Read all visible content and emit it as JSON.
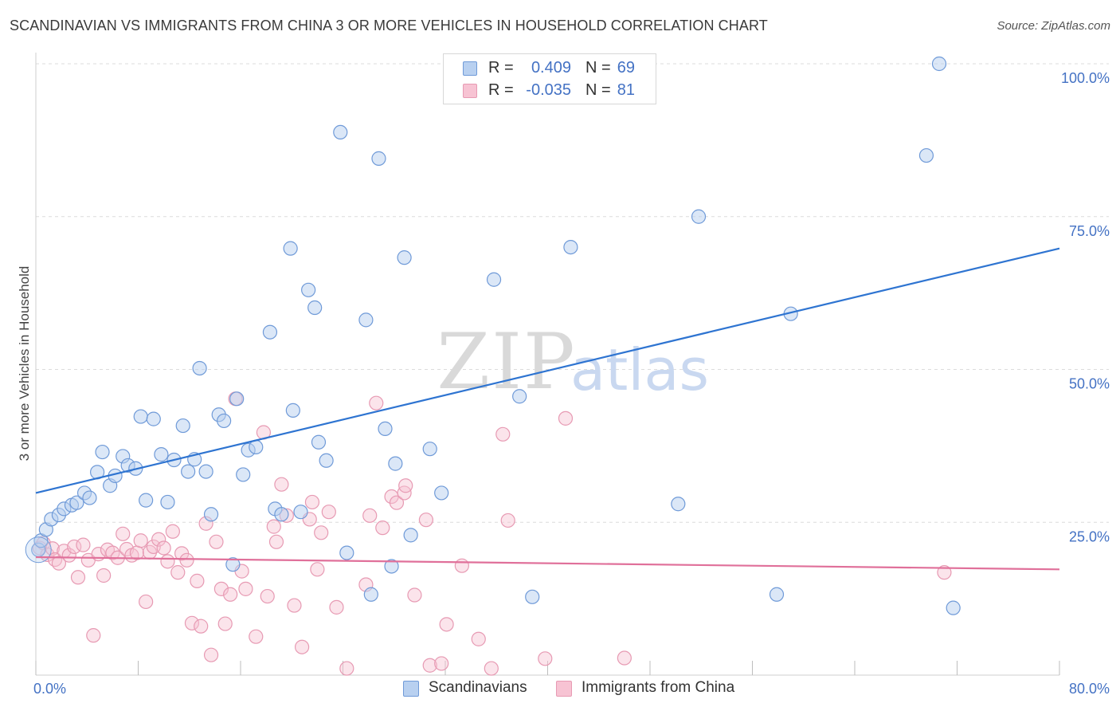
{
  "title": "SCANDINAVIAN VS IMMIGRANTS FROM CHINA 3 OR MORE VEHICLES IN HOUSEHOLD CORRELATION CHART",
  "source": "Source: ZipAtlas.com",
  "watermark": {
    "zip": "ZIP",
    "atlas": "atlas"
  },
  "legend": {
    "rows": [
      {
        "r_label": "R =",
        "r_value": "0.409",
        "n_label": "N =",
        "n_value": "69"
      },
      {
        "r_label": "R =",
        "r_value": "-0.035",
        "n_label": "N =",
        "n_value": "81"
      }
    ]
  },
  "colors": {
    "blue_fill": "#b8d0f0",
    "blue_stroke": "#6f9ad8",
    "blue_line": "#2e74d1",
    "pink_fill": "#f7c3d3",
    "pink_stroke": "#e79ab3",
    "pink_line": "#e0709a",
    "tick_text": "#4472c4",
    "grid": "#dcdcdc"
  },
  "chart_data": {
    "type": "scatter",
    "title": "SCANDINAVIAN VS IMMIGRANTS FROM CHINA 3 OR MORE VEHICLES IN HOUSEHOLD CORRELATION CHART",
    "xlabel": "",
    "ylabel": "3 or more Vehicles in Household",
    "xlim": [
      0,
      80
    ],
    "ylim": [
      0,
      100
    ],
    "x_tick_labels": [
      "0.0%",
      "80.0%"
    ],
    "y_ticks": [
      25,
      50,
      75,
      100
    ],
    "y_tick_labels": [
      "25.0%",
      "50.0%",
      "75.0%",
      "100.0%"
    ],
    "grid": true,
    "legend_position": "top-center",
    "series": [
      {
        "name": "Scandinavians",
        "r": 0.409,
        "n": 69,
        "trend": {
          "x0": 0,
          "y0": 29.8,
          "x1": 80,
          "y1": 69.8
        },
        "points": [
          [
            0.2,
            20.5
          ],
          [
            0.4,
            22.0
          ],
          [
            0.8,
            23.8
          ],
          [
            1.2,
            25.5
          ],
          [
            1.8,
            26.2
          ],
          [
            2.2,
            27.2
          ],
          [
            2.8,
            27.8
          ],
          [
            3.2,
            28.2
          ],
          [
            3.8,
            29.8
          ],
          [
            4.2,
            29.0
          ],
          [
            4.8,
            33.2
          ],
          [
            5.2,
            36.5
          ],
          [
            5.8,
            31.0
          ],
          [
            6.2,
            32.6
          ],
          [
            6.8,
            35.8
          ],
          [
            7.2,
            34.3
          ],
          [
            7.8,
            33.8
          ],
          [
            8.2,
            42.3
          ],
          [
            8.6,
            28.6
          ],
          [
            9.2,
            41.9
          ],
          [
            9.8,
            36.1
          ],
          [
            10.3,
            28.3
          ],
          [
            10.8,
            35.2
          ],
          [
            11.5,
            40.8
          ],
          [
            11.9,
            33.3
          ],
          [
            12.4,
            35.3
          ],
          [
            12.8,
            50.2
          ],
          [
            13.3,
            33.3
          ],
          [
            13.7,
            26.3
          ],
          [
            14.3,
            42.6
          ],
          [
            14.7,
            41.6
          ],
          [
            15.4,
            18.1
          ],
          [
            15.7,
            45.2
          ],
          [
            16.2,
            32.8
          ],
          [
            16.6,
            36.8
          ],
          [
            17.2,
            37.3
          ],
          [
            18.3,
            56.1
          ],
          [
            18.7,
            27.2
          ],
          [
            19.2,
            26.3
          ],
          [
            19.9,
            69.8
          ],
          [
            20.1,
            43.3
          ],
          [
            20.7,
            26.7
          ],
          [
            21.3,
            63.0
          ],
          [
            21.8,
            60.1
          ],
          [
            22.1,
            38.1
          ],
          [
            22.7,
            35.1
          ],
          [
            23.8,
            88.8
          ],
          [
            24.3,
            20.0
          ],
          [
            25.8,
            58.1
          ],
          [
            26.2,
            13.2
          ],
          [
            26.8,
            84.5
          ],
          [
            27.3,
            40.3
          ],
          [
            27.8,
            17.8
          ],
          [
            28.1,
            34.6
          ],
          [
            28.8,
            68.3
          ],
          [
            29.3,
            22.9
          ],
          [
            30.8,
            37.0
          ],
          [
            31.7,
            29.8
          ],
          [
            35.8,
            64.7
          ],
          [
            37.8,
            45.6
          ],
          [
            38.8,
            12.8
          ],
          [
            41.8,
            70.0
          ],
          [
            50.2,
            28.0
          ],
          [
            51.8,
            75.0
          ],
          [
            57.9,
            13.2
          ],
          [
            59.0,
            59.1
          ],
          [
            69.6,
            85.0
          ],
          [
            70.6,
            100.0
          ],
          [
            71.7,
            11.0
          ]
        ]
      },
      {
        "name": "Immigrants from China",
        "r": -0.035,
        "n": 81,
        "trend": {
          "x0": 0,
          "y0": 19.3,
          "x1": 80,
          "y1": 17.3
        },
        "points": [
          [
            0.3,
            20.8
          ],
          [
            0.6,
            21.6
          ],
          [
            0.9,
            19.7
          ],
          [
            1.3,
            20.7
          ],
          [
            1.5,
            18.9
          ],
          [
            1.8,
            18.3
          ],
          [
            2.2,
            20.3
          ],
          [
            2.6,
            19.6
          ],
          [
            3.0,
            21.0
          ],
          [
            3.3,
            16.0
          ],
          [
            3.7,
            21.3
          ],
          [
            4.1,
            18.8
          ],
          [
            4.5,
            6.5
          ],
          [
            4.9,
            19.8
          ],
          [
            5.3,
            16.3
          ],
          [
            5.6,
            20.5
          ],
          [
            6.0,
            20.0
          ],
          [
            6.4,
            19.2
          ],
          [
            6.8,
            23.1
          ],
          [
            7.1,
            20.6
          ],
          [
            7.5,
            19.6
          ],
          [
            7.9,
            20.0
          ],
          [
            8.2,
            22.0
          ],
          [
            8.6,
            12.0
          ],
          [
            8.9,
            20.1
          ],
          [
            9.2,
            21.0
          ],
          [
            9.6,
            22.2
          ],
          [
            10.0,
            20.8
          ],
          [
            10.3,
            18.6
          ],
          [
            10.7,
            23.5
          ],
          [
            11.1,
            16.8
          ],
          [
            11.4,
            19.9
          ],
          [
            11.8,
            18.8
          ],
          [
            12.2,
            8.5
          ],
          [
            12.6,
            15.4
          ],
          [
            12.9,
            8.0
          ],
          [
            13.3,
            24.8
          ],
          [
            13.7,
            3.3
          ],
          [
            14.1,
            21.8
          ],
          [
            14.5,
            14.1
          ],
          [
            14.8,
            8.4
          ],
          [
            15.2,
            13.2
          ],
          [
            15.6,
            45.2
          ],
          [
            16.1,
            17.0
          ],
          [
            16.4,
            14.1
          ],
          [
            17.2,
            6.3
          ],
          [
            17.8,
            39.7
          ],
          [
            18.1,
            12.9
          ],
          [
            18.6,
            24.3
          ],
          [
            18.8,
            21.8
          ],
          [
            19.2,
            31.2
          ],
          [
            19.6,
            26.1
          ],
          [
            20.2,
            11.4
          ],
          [
            20.8,
            4.6
          ],
          [
            21.4,
            25.5
          ],
          [
            21.6,
            28.3
          ],
          [
            22.0,
            17.3
          ],
          [
            22.3,
            23.3
          ],
          [
            22.9,
            26.7
          ],
          [
            23.5,
            11.1
          ],
          [
            24.3,
            1.1
          ],
          [
            25.8,
            14.8
          ],
          [
            26.1,
            26.1
          ],
          [
            26.6,
            44.5
          ],
          [
            27.1,
            24.1
          ],
          [
            27.8,
            29.2
          ],
          [
            28.2,
            28.2
          ],
          [
            28.8,
            29.8
          ],
          [
            28.9,
            31.0
          ],
          [
            29.6,
            13.1
          ],
          [
            30.5,
            25.4
          ],
          [
            30.8,
            1.6
          ],
          [
            31.7,
            1.9
          ],
          [
            32.1,
            8.3
          ],
          [
            33.3,
            17.9
          ],
          [
            34.6,
            5.9
          ],
          [
            35.6,
            1.1
          ],
          [
            36.5,
            39.4
          ],
          [
            36.9,
            25.3
          ],
          [
            39.8,
            2.7
          ],
          [
            41.4,
            42.0
          ],
          [
            46.0,
            2.8
          ],
          [
            71.0,
            16.8
          ]
        ]
      }
    ]
  },
  "bottom_legend": {
    "items": [
      "Scandinavians",
      "Immigrants from China"
    ]
  }
}
